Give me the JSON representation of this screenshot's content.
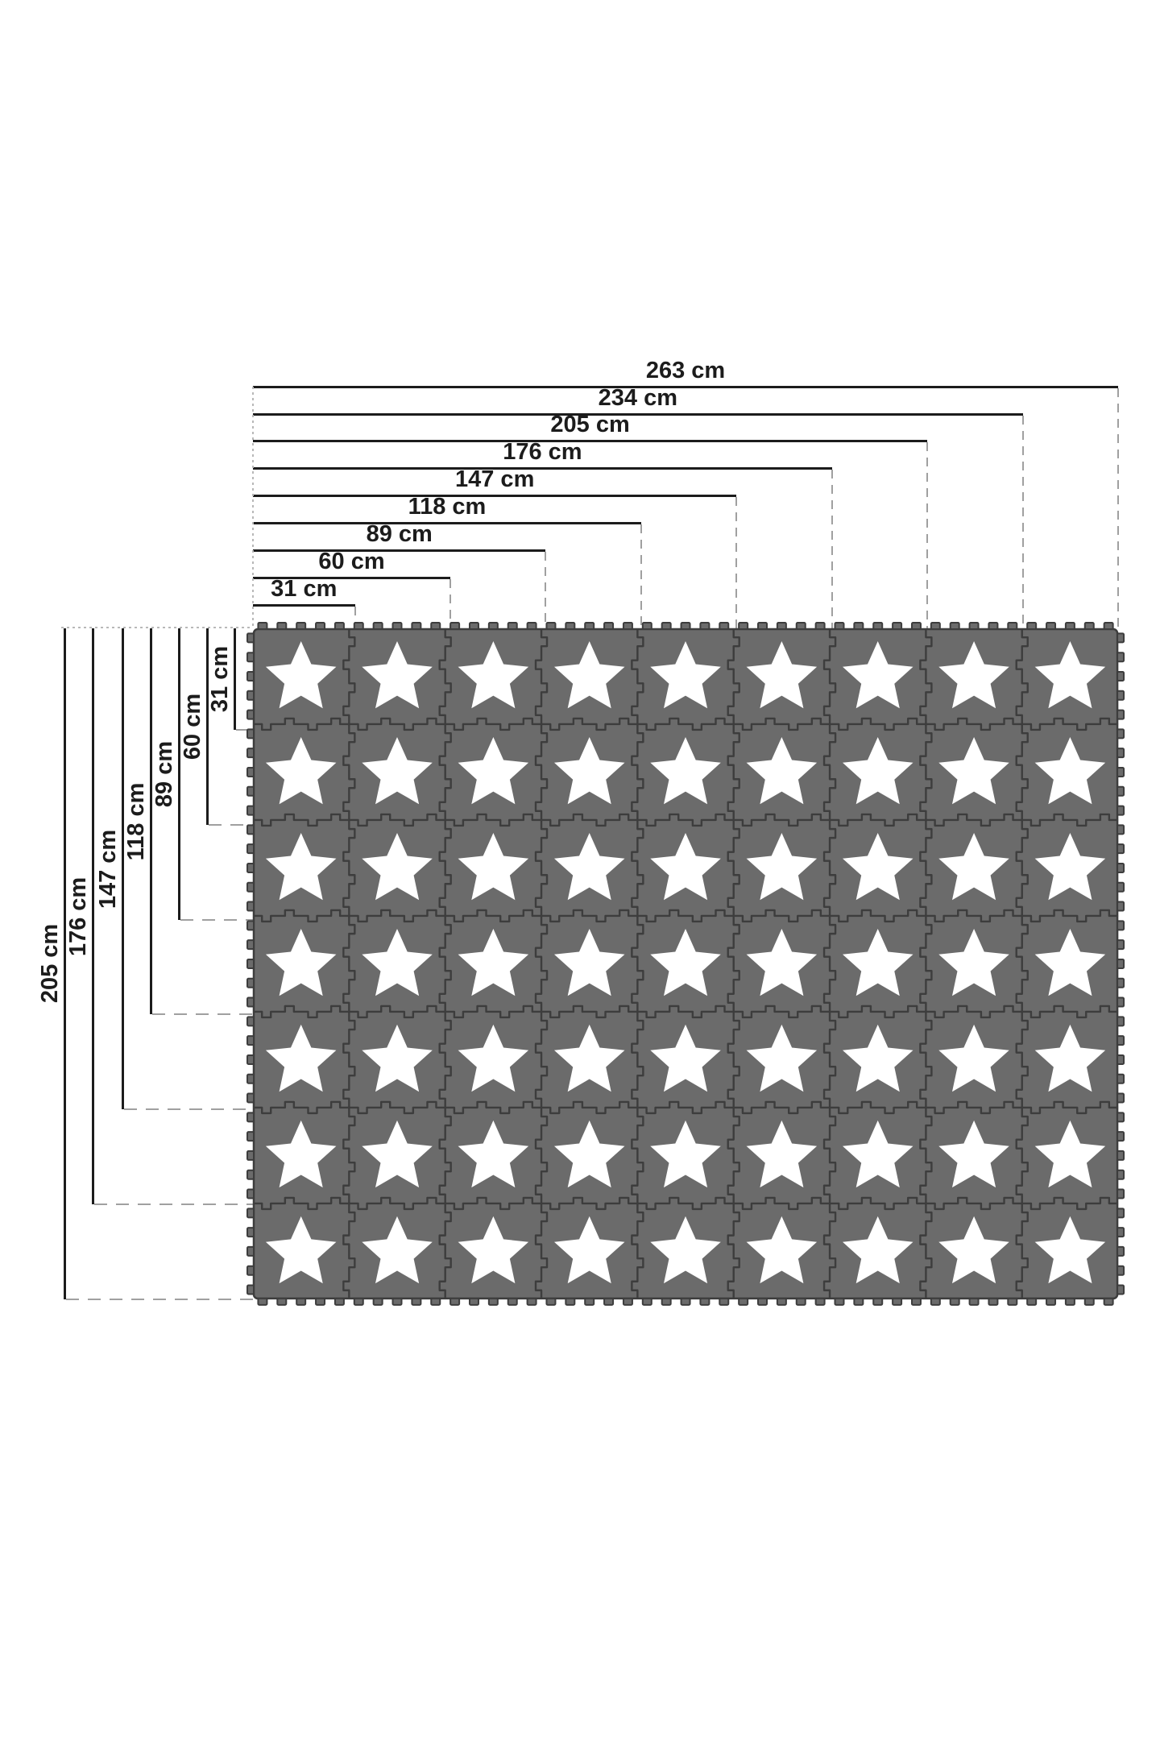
{
  "unit": "cm",
  "top_dimensions": {
    "labels": [
      "263 cm",
      "234 cm",
      "205 cm",
      "176 cm",
      "147 cm",
      "118 cm",
      "89 cm",
      "60 cm",
      "31 cm"
    ],
    "values_cm": [
      263,
      234,
      205,
      176,
      147,
      118,
      89,
      60,
      31
    ]
  },
  "left_dimensions": {
    "labels": [
      "205 cm",
      "176 cm",
      "147 cm",
      "118 cm",
      "89 cm",
      "60 cm",
      "31 cm"
    ],
    "values_cm": [
      205,
      176,
      147,
      118,
      89,
      60,
      31
    ]
  },
  "mat": {
    "columns": 9,
    "rows": 7,
    "tile_count": 63,
    "tile_motif": "white-star",
    "tile_step_cm": 29,
    "first_tile_cm": 31,
    "total_width_cm": 263,
    "total_height_cm": 205
  },
  "colors": {
    "background": "#ffffff",
    "dimension_line": "#1c1c1c",
    "dashed_line": "#a0a0a0",
    "dotted_line": "#b8b8b8",
    "tile_gray": "#6b6b6b",
    "seam_dark": "#3d3d3d",
    "star_white": "#ffffff"
  }
}
